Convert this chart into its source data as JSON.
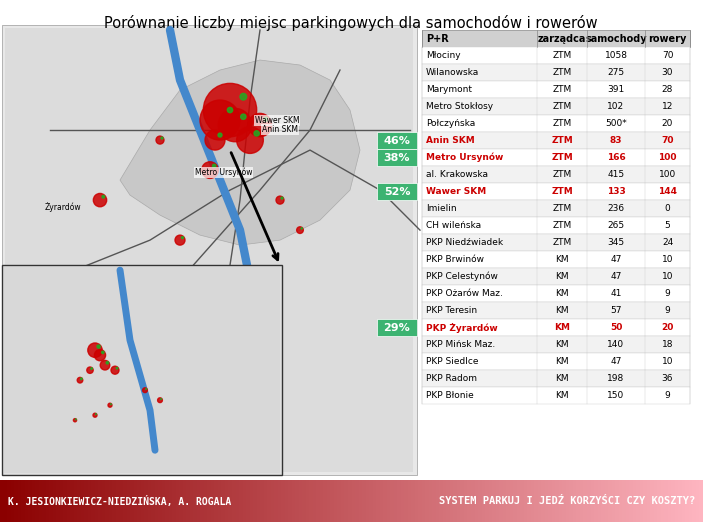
{
  "title": "Porównanie liczby miejsc parkingowych dla samochodów i rowerów",
  "table_headers": [
    "P+R",
    "zarządca",
    "samochody",
    "rowery"
  ],
  "rows": [
    {
      "name": "Młociny",
      "zarzadca": "ZTM",
      "samochody": "1058",
      "rowery": "70",
      "bold": false,
      "red": false
    },
    {
      "name": "Wilanowska",
      "zarzadca": "ZTM",
      "samochody": "275",
      "rowery": "30",
      "bold": false,
      "red": false
    },
    {
      "name": "Marymont",
      "zarzadca": "ZTM",
      "samochody": "391",
      "rowery": "28",
      "bold": false,
      "red": false
    },
    {
      "name": "Metro Stokłosy",
      "zarzadca": "ZTM",
      "samochody": "102",
      "rowery": "12",
      "bold": false,
      "red": false
    },
    {
      "name": "Połczyńska",
      "zarzadca": "ZTM",
      "samochody": "500*",
      "rowery": "20",
      "bold": false,
      "red": false
    },
    {
      "name": "Anin SKM",
      "zarzadca": "ZTM",
      "samochody": "83",
      "rowery": "70",
      "bold": true,
      "red": true
    },
    {
      "name": "Metro Ursynów",
      "zarzadca": "ZTM",
      "samochody": "166",
      "rowery": "100",
      "bold": true,
      "red": true
    },
    {
      "name": "al. Krakowska",
      "zarzadca": "ZTM",
      "samochody": "415",
      "rowery": "100",
      "bold": false,
      "red": false
    },
    {
      "name": "Wawer SKM",
      "zarzadca": "ZTM",
      "samochody": "133",
      "rowery": "144",
      "bold": true,
      "red": true
    },
    {
      "name": "Imielin",
      "zarzadca": "ZTM",
      "samochody": "236",
      "rowery": "0",
      "bold": false,
      "red": false
    },
    {
      "name": "CH wileńska",
      "zarzadca": "ZTM",
      "samochody": "265",
      "rowery": "5",
      "bold": false,
      "red": false
    },
    {
      "name": "PKP Niedźwiadek",
      "zarzadca": "ZTM",
      "samochody": "345",
      "rowery": "24",
      "bold": false,
      "red": false
    },
    {
      "name": "PKP Brwinów",
      "zarzadca": "KM",
      "samochody": "47",
      "rowery": "10",
      "bold": false,
      "red": false
    },
    {
      "name": "PKP Celestynów",
      "zarzadca": "KM",
      "samochody": "47",
      "rowery": "10",
      "bold": false,
      "red": false
    },
    {
      "name": "PKP Ożarów Maz.",
      "zarzadca": "KM",
      "samochody": "41",
      "rowery": "9",
      "bold": false,
      "red": false
    },
    {
      "name": "PKP Teresin",
      "zarzadca": "KM",
      "samochody": "57",
      "rowery": "9",
      "bold": false,
      "red": false
    },
    {
      "name": "PKP Żyrardów",
      "zarzadca": "KM",
      "samochody": "50",
      "rowery": "20",
      "bold": true,
      "red": true
    },
    {
      "name": "PKP Mińsk Maz.",
      "zarzadca": "KM",
      "samochody": "140",
      "rowery": "18",
      "bold": false,
      "red": false
    },
    {
      "name": "PKP Siedlce",
      "zarzadca": "KM",
      "samochody": "47",
      "rowery": "10",
      "bold": false,
      "red": false
    },
    {
      "name": "PKP Radom",
      "zarzadca": "KM",
      "samochody": "198",
      "rowery": "36",
      "bold": false,
      "red": false
    },
    {
      "name": "PKP Błonie",
      "zarzadca": "KM",
      "samochody": "150",
      "rowery": "9",
      "bold": false,
      "red": false
    }
  ],
  "green_labels": [
    {
      "text": "46%",
      "row_index": 5
    },
    {
      "text": "38%",
      "row_index": 6
    },
    {
      "text": "52%",
      "row_index": 8
    },
    {
      "text": "29%",
      "row_index": 16
    }
  ],
  "footer_left": "K. JESIONKIEWICZ-NIEDZIŃSKA, A. ROGALA",
  "footer_right": "SYSTEM PARKUJ I JEDŹ KORZYŚCI CZY KOSZTY?",
  "footer_bg_left": "#8B0000",
  "footer_bg_gradient_end": "#FFB6C1",
  "table_bg": "#ffffff",
  "header_bg": "#e0e0e0",
  "row_alt_bg": "#f5f5f5",
  "red_color": "#cc0000",
  "green_color": "#228B22",
  "green_label_bg": "#3cb371"
}
